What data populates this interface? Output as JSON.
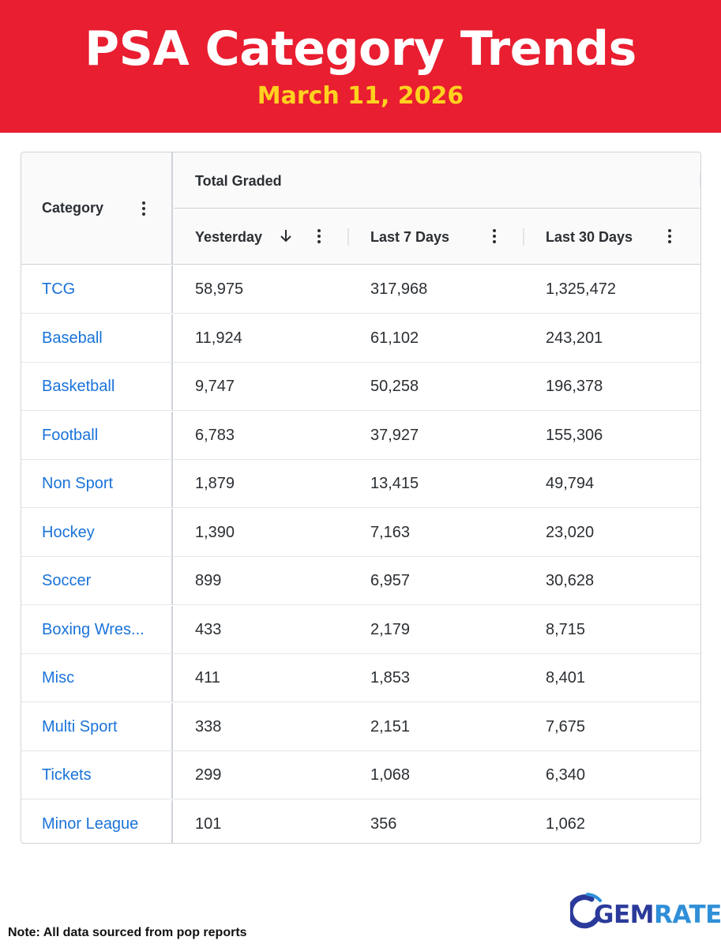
{
  "header": {
    "title": "PSA Category Trends",
    "date": "March 11, 2026"
  },
  "table": {
    "category_label": "Category",
    "group_label": "Total Graded",
    "columns": [
      "Yesterday",
      "Last 7 Days",
      "Last 30 Days"
    ],
    "sorted_column": "Yesterday",
    "sort_direction": "descending",
    "rows": [
      {
        "category": "TCG",
        "yesterday": "58,975",
        "last7": "317,968",
        "last30": "1,325,472"
      },
      {
        "category": "Baseball",
        "yesterday": "11,924",
        "last7": "61,102",
        "last30": "243,201"
      },
      {
        "category": "Basketball",
        "yesterday": "9,747",
        "last7": "50,258",
        "last30": "196,378"
      },
      {
        "category": "Football",
        "yesterday": "6,783",
        "last7": "37,927",
        "last30": "155,306"
      },
      {
        "category": "Non Sport",
        "yesterday": "1,879",
        "last7": "13,415",
        "last30": "49,794"
      },
      {
        "category": "Hockey",
        "yesterday": "1,390",
        "last7": "7,163",
        "last30": "23,020"
      },
      {
        "category": "Soccer",
        "yesterday": "899",
        "last7": "6,957",
        "last30": "30,628"
      },
      {
        "category": "Boxing Wres...",
        "yesterday": "433",
        "last7": "2,179",
        "last30": "8,715"
      },
      {
        "category": "Misc",
        "yesterday": "411",
        "last7": "1,853",
        "last30": "8,401"
      },
      {
        "category": "Multi Sport",
        "yesterday": "338",
        "last7": "2,151",
        "last30": "7,675"
      },
      {
        "category": "Tickets",
        "yesterday": "299",
        "last7": "1,068",
        "last30": "6,340"
      },
      {
        "category": "Minor League",
        "yesterday": "101",
        "last7": "356",
        "last30": "1,062"
      }
    ]
  },
  "footer": {
    "note": "Note: All data sourced from pop reports",
    "logo_part1": "GEM",
    "logo_part2": "RATE"
  },
  "colors": {
    "banner": "#e91e30",
    "title": "#ffffff",
    "date": "#ffd21f",
    "link": "#1a73d9",
    "logo_dark": "#2b3a9a",
    "logo_light": "#2f8fd8"
  },
  "icons": {
    "column_menu": "kebab-menu-icon",
    "sort": "arrow-down-icon",
    "logo": "gemrate-logo"
  }
}
